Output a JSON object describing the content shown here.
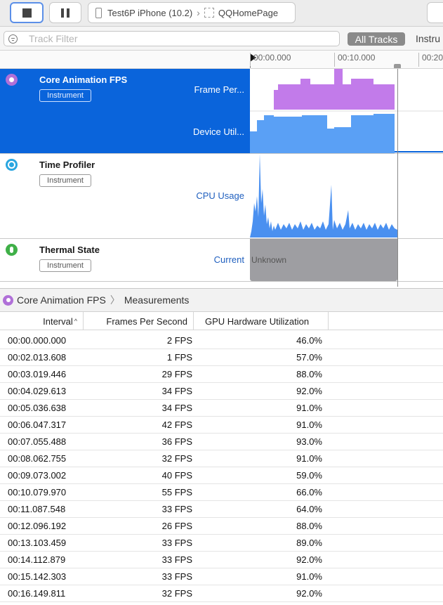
{
  "toolbar": {
    "device": "Test6P iPhone (10.2)",
    "app": "QQHomePage"
  },
  "filter": {
    "placeholder": "Track Filter",
    "all_tracks": "All Tracks",
    "instruments_cut": "Instru"
  },
  "ruler": {
    "ticks": [
      "00:00.000",
      "00:10.000",
      "00:20"
    ]
  },
  "tracks": [
    {
      "name": "Core Animation FPS",
      "badge": "Instrument",
      "details": [
        "Frame Per...",
        "Device Util..."
      ],
      "icon_color": "#b070d8",
      "selected": true
    },
    {
      "name": "Time Profiler",
      "badge": "Instrument",
      "details": [
        "CPU Usage"
      ],
      "icon_color": "#2aa6e0",
      "selected": false
    },
    {
      "name": "Thermal State",
      "badge": "Instrument",
      "details": [
        "Current"
      ],
      "icon_color": "#3fb048",
      "state_value": "Unknown",
      "selected": false
    }
  ],
  "breadcrumb": {
    "instrument": "Core Animation FPS",
    "view": "Measurements"
  },
  "table": {
    "columns": [
      "Interval",
      "Frames Per Second",
      "GPU Hardware Utilization"
    ],
    "sort_column": "Interval",
    "rows": [
      [
        "00:00.000.000",
        "2 FPS",
        "46.0%"
      ],
      [
        "00:02.013.608",
        "1 FPS",
        "57.0%"
      ],
      [
        "00:03.019.446",
        "29 FPS",
        "88.0%"
      ],
      [
        "00:04.029.613",
        "34 FPS",
        "92.0%"
      ],
      [
        "00:05.036.638",
        "34 FPS",
        "91.0%"
      ],
      [
        "00:06.047.317",
        "42 FPS",
        "91.0%"
      ],
      [
        "00:07.055.488",
        "36 FPS",
        "93.0%"
      ],
      [
        "00:08.062.755",
        "32 FPS",
        "91.0%"
      ],
      [
        "00:09.073.002",
        "40 FPS",
        "59.0%"
      ],
      [
        "00:10.079.970",
        "55 FPS",
        "66.0%"
      ],
      [
        "00:11.087.548",
        "33 FPS",
        "64.0%"
      ],
      [
        "00:12.096.192",
        "26 FPS",
        "88.0%"
      ],
      [
        "00:13.103.459",
        "33 FPS",
        "89.0%"
      ],
      [
        "00:14.112.879",
        "33 FPS",
        "92.0%"
      ],
      [
        "00:15.142.303",
        "33 FPS",
        "91.0%"
      ],
      [
        "00:16.149.811",
        "32 FPS",
        "92.0%"
      ]
    ]
  },
  "colors": {
    "selection": "#0a64db",
    "fps_graph": "#c27bea",
    "gpu_graph": "#5aa0f5",
    "cpu_graph": "#4a90f0",
    "thermal_unknown": "#9e9ea2"
  }
}
